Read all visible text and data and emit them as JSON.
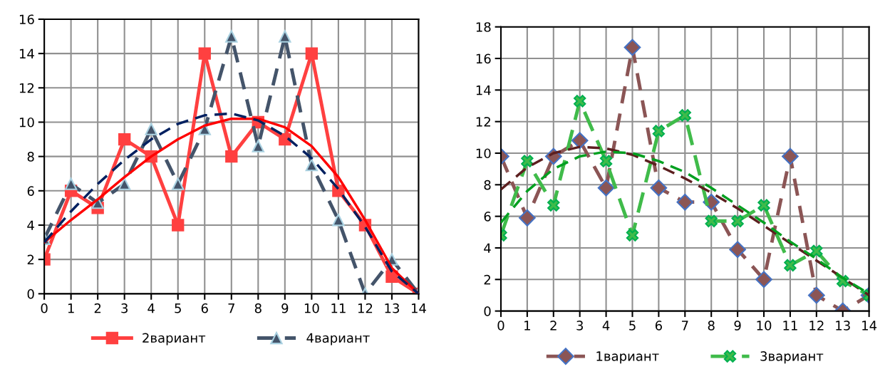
{
  "chart_data": [
    {
      "type": "line",
      "xlim": [
        0,
        14
      ],
      "xticks": [
        0,
        1,
        2,
        3,
        4,
        5,
        6,
        7,
        8,
        9,
        10,
        11,
        12,
        13,
        14
      ],
      "ylim": [
        0,
        16
      ],
      "yticks": [
        0,
        2,
        4,
        6,
        8,
        10,
        12,
        14,
        16
      ],
      "grid": true,
      "legend": "bottom",
      "x": [
        0,
        1,
        2,
        3,
        4,
        5,
        6,
        7,
        8,
        9,
        10,
        11,
        12,
        13,
        14
      ],
      "series": [
        {
          "name": "2вариант",
          "color": "#ff4040",
          "marker": "square",
          "line_style": "solid",
          "values": [
            2,
            6,
            5,
            9,
            8,
            4,
            14,
            8,
            10,
            9,
            14,
            6,
            4,
            1,
            0
          ]
        },
        {
          "name": "4вариант",
          "color": "#44546a",
          "marker": "triangle",
          "line_style": "dashed",
          "values": [
            3.2,
            6.4,
            5.3,
            6.4,
            9.6,
            6.4,
            9.6,
            15,
            8.6,
            15,
            7.5,
            4.3,
            0,
            2,
            0
          ]
        },
        {
          "type": "line",
          "color": "#ff0000",
          "marker": "none",
          "line_style": "solid",
          "x": [
            0,
            1,
            2,
            3,
            4,
            5,
            6,
            7,
            8,
            9,
            10,
            11,
            12,
            13,
            14
          ],
          "values": [
            3,
            4.3,
            5.5,
            6.8,
            8,
            9,
            9.8,
            10.2,
            10.2,
            9.7,
            8.6,
            6.8,
            4.3,
            1.5,
            0
          ]
        },
        {
          "type": "line",
          "color": "#002060",
          "marker": "none",
          "line_style": "dashed",
          "x": [
            0,
            1,
            2,
            3,
            4,
            5,
            6,
            7,
            8,
            9,
            10,
            11,
            12,
            13,
            14
          ],
          "values": [
            3,
            4.8,
            6.4,
            7.8,
            9,
            9.9,
            10.4,
            10.5,
            10.1,
            9.2,
            7.9,
            6.1,
            3.9,
            1.3,
            0
          ]
        }
      ]
    },
    {
      "type": "line",
      "xlim": [
        0,
        14
      ],
      "xticks": [
        0,
        1,
        2,
        3,
        4,
        5,
        6,
        7,
        8,
        9,
        10,
        11,
        12,
        13,
        14
      ],
      "ylim": [
        0,
        18
      ],
      "yticks": [
        0,
        2,
        4,
        6,
        8,
        10,
        12,
        14,
        16,
        18
      ],
      "grid": true,
      "legend": "bottom",
      "x": [
        0,
        1,
        2,
        3,
        4,
        5,
        6,
        7,
        8,
        9,
        10,
        11,
        12,
        13,
        14
      ],
      "series": [
        {
          "name": "1вариант",
          "color": "#8b5555",
          "marker": "diamond",
          "line_style": "dashed",
          "values": [
            9.8,
            5.9,
            9.8,
            10.8,
            7.8,
            16.7,
            7.8,
            6.9,
            6.9,
            3.9,
            2,
            9.8,
            1,
            0,
            1
          ]
        },
        {
          "name": "3вариант",
          "color": "#40bb4a",
          "marker": "cross",
          "line_style": "dashed",
          "values": [
            4.8,
            9.5,
            6.7,
            13.3,
            9.5,
            4.8,
            11.4,
            12.4,
            5.7,
            5.7,
            6.7,
            2.9,
            3.8,
            1.9,
            1
          ]
        },
        {
          "type": "line",
          "color": "#5c1f1f",
          "marker": "none",
          "line_style": "dashed",
          "x": [
            0,
            1,
            2,
            3,
            4,
            5,
            6,
            7,
            8,
            9,
            10,
            11,
            12,
            13,
            14
          ],
          "values": [
            7.7,
            9.1,
            10,
            10.4,
            10.3,
            9.9,
            9.2,
            8.4,
            7.5,
            6.5,
            5.4,
            4.3,
            3.2,
            2.1,
            1
          ]
        },
        {
          "type": "line",
          "color": "#00a020",
          "marker": "none",
          "line_style": "dashed",
          "x": [
            0,
            1,
            2,
            3,
            4,
            5,
            6,
            7,
            8,
            9,
            10,
            11,
            12,
            13,
            14
          ],
          "values": [
            5.6,
            7.6,
            9,
            9.8,
            10.1,
            10,
            9.5,
            8.8,
            7.8,
            6.7,
            5.6,
            4.4,
            3.3,
            2.1,
            1.1
          ]
        }
      ]
    }
  ]
}
